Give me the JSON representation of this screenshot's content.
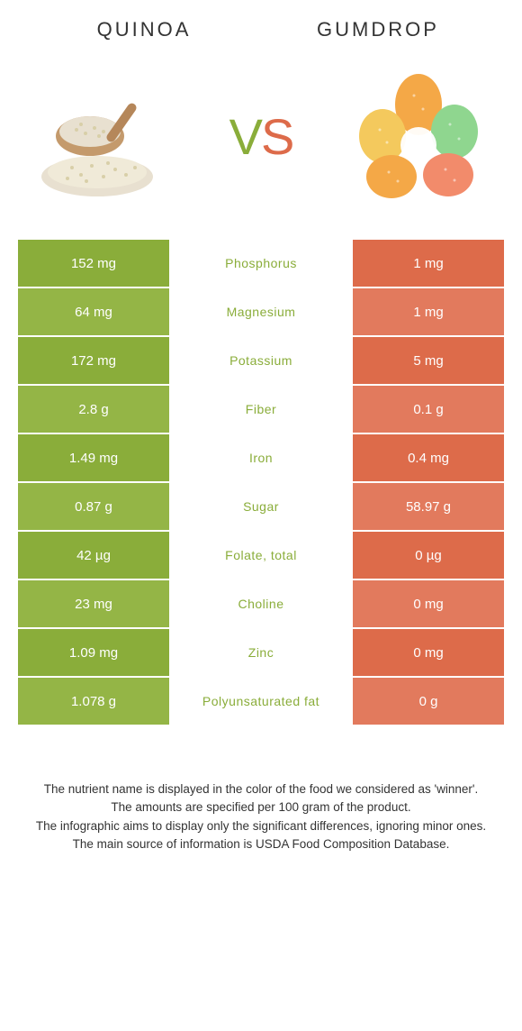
{
  "colors": {
    "left": "#8aad3a",
    "right": "#dd6b4a",
    "left_alt": "#94b546",
    "right_alt": "#e27a5d",
    "background": "#ffffff",
    "text": "#333333"
  },
  "header": {
    "left_title": "QUINOA",
    "right_title": "GUMDROP",
    "vs_v": "V",
    "vs_s": "S"
  },
  "rows": [
    {
      "left": "152 mg",
      "label": "Phosphorus",
      "right": "1 mg",
      "winner": "left"
    },
    {
      "left": "64 mg",
      "label": "Magnesium",
      "right": "1 mg",
      "winner": "left"
    },
    {
      "left": "172 mg",
      "label": "Potassium",
      "right": "5 mg",
      "winner": "left"
    },
    {
      "left": "2.8 g",
      "label": "Fiber",
      "right": "0.1 g",
      "winner": "left"
    },
    {
      "left": "1.49 mg",
      "label": "Iron",
      "right": "0.4 mg",
      "winner": "left"
    },
    {
      "left": "0.87 g",
      "label": "Sugar",
      "right": "58.97 g",
      "winner": "left"
    },
    {
      "left": "42 µg",
      "label": "Folate, total",
      "right": "0 µg",
      "winner": "left"
    },
    {
      "left": "23 mg",
      "label": "Choline",
      "right": "0 mg",
      "winner": "left"
    },
    {
      "left": "1.09 mg",
      "label": "Zinc",
      "right": "0 mg",
      "winner": "left"
    },
    {
      "left": "1.078 g",
      "label": "Polyunsaturated fat",
      "right": "0 g",
      "winner": "left"
    }
  ],
  "footnotes": [
    "The nutrient name is displayed in the color of the food we considered as 'winner'.",
    "The amounts are specified per 100 gram of the product.",
    "The infographic aims to display only the significant differences, ignoring minor ones.",
    "The main source of information is USDA Food Composition Database."
  ]
}
